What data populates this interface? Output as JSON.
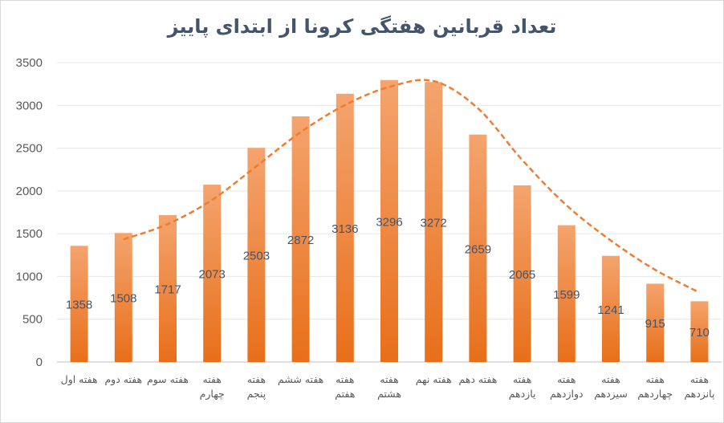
{
  "chart_data": {
    "type": "bar",
    "title": "تعداد قربانین هفتگی کرونا از ابتدای پاییز",
    "categories": [
      "هفته اول",
      "هفته دوم",
      "هفته سوم",
      "هفته چهارم",
      "هفته پنجم",
      "هفته ششم",
      "هفته هفتم",
      "هفته هشتم",
      "هفته نهم",
      "هفته دهم",
      "هفته یازدهم",
      "هفته دوازدهم",
      "هفته سیزدهم",
      "هفته چهاردهم",
      "هفته پانزدهم"
    ],
    "values": [
      1358,
      1508,
      1717,
      2073,
      2503,
      2872,
      3136,
      3296,
      3272,
      2659,
      2065,
      1599,
      1241,
      915,
      710
    ],
    "ylim": [
      0,
      3500
    ],
    "yticks": [
      0,
      500,
      1000,
      1500,
      2000,
      2500,
      3000,
      3500
    ],
    "grid": true,
    "data_labels": true,
    "trendline": {
      "type": "moving-average",
      "period": 2,
      "style": "dashed"
    },
    "colors": {
      "bar_top": "#f4a46e",
      "bar_bottom": "#e86f1a",
      "trendline": "#ed7d31",
      "grid": "#e6e6e6"
    }
  }
}
